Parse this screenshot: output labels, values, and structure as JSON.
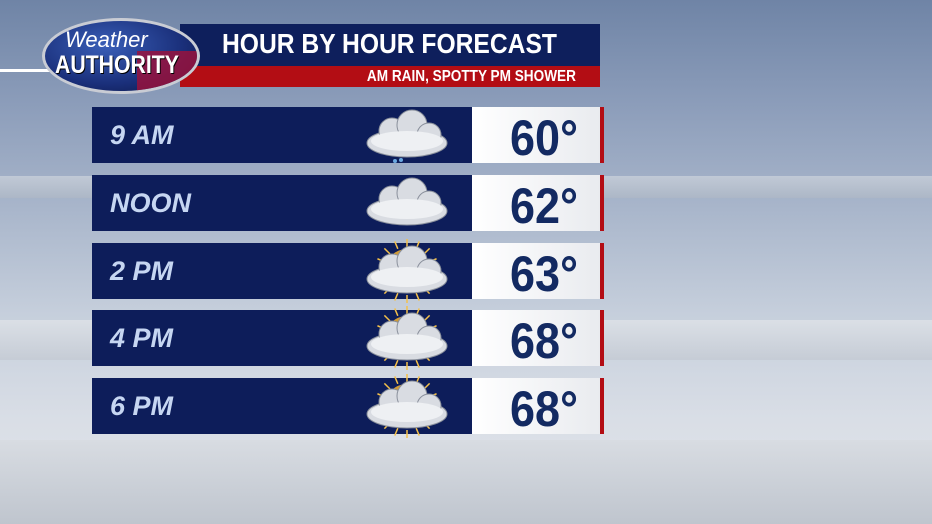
{
  "logo": {
    "line1": "Weather",
    "line2": "AUTHORITY"
  },
  "header": {
    "title": "HOUR BY HOUR FORECAST",
    "subtitle": "AM RAIN, SPOTTY PM SHOWER"
  },
  "colors": {
    "navy": "#0d1d5a",
    "red": "#b30d14",
    "label": "#c6d6f2",
    "temp": "#132a62"
  },
  "forecast": [
    {
      "time": "9 AM",
      "temp": "60°",
      "icon": "cloud-rain-icon"
    },
    {
      "time": "NOON",
      "temp": "62°",
      "icon": "cloud-icon"
    },
    {
      "time": "2 PM",
      "temp": "63°",
      "icon": "cloud-sun-icon"
    },
    {
      "time": "4 PM",
      "temp": "68°",
      "icon": "cloud-sun-icon"
    },
    {
      "time": "6 PM",
      "temp": "68°",
      "icon": "cloud-sun-icon"
    }
  ]
}
